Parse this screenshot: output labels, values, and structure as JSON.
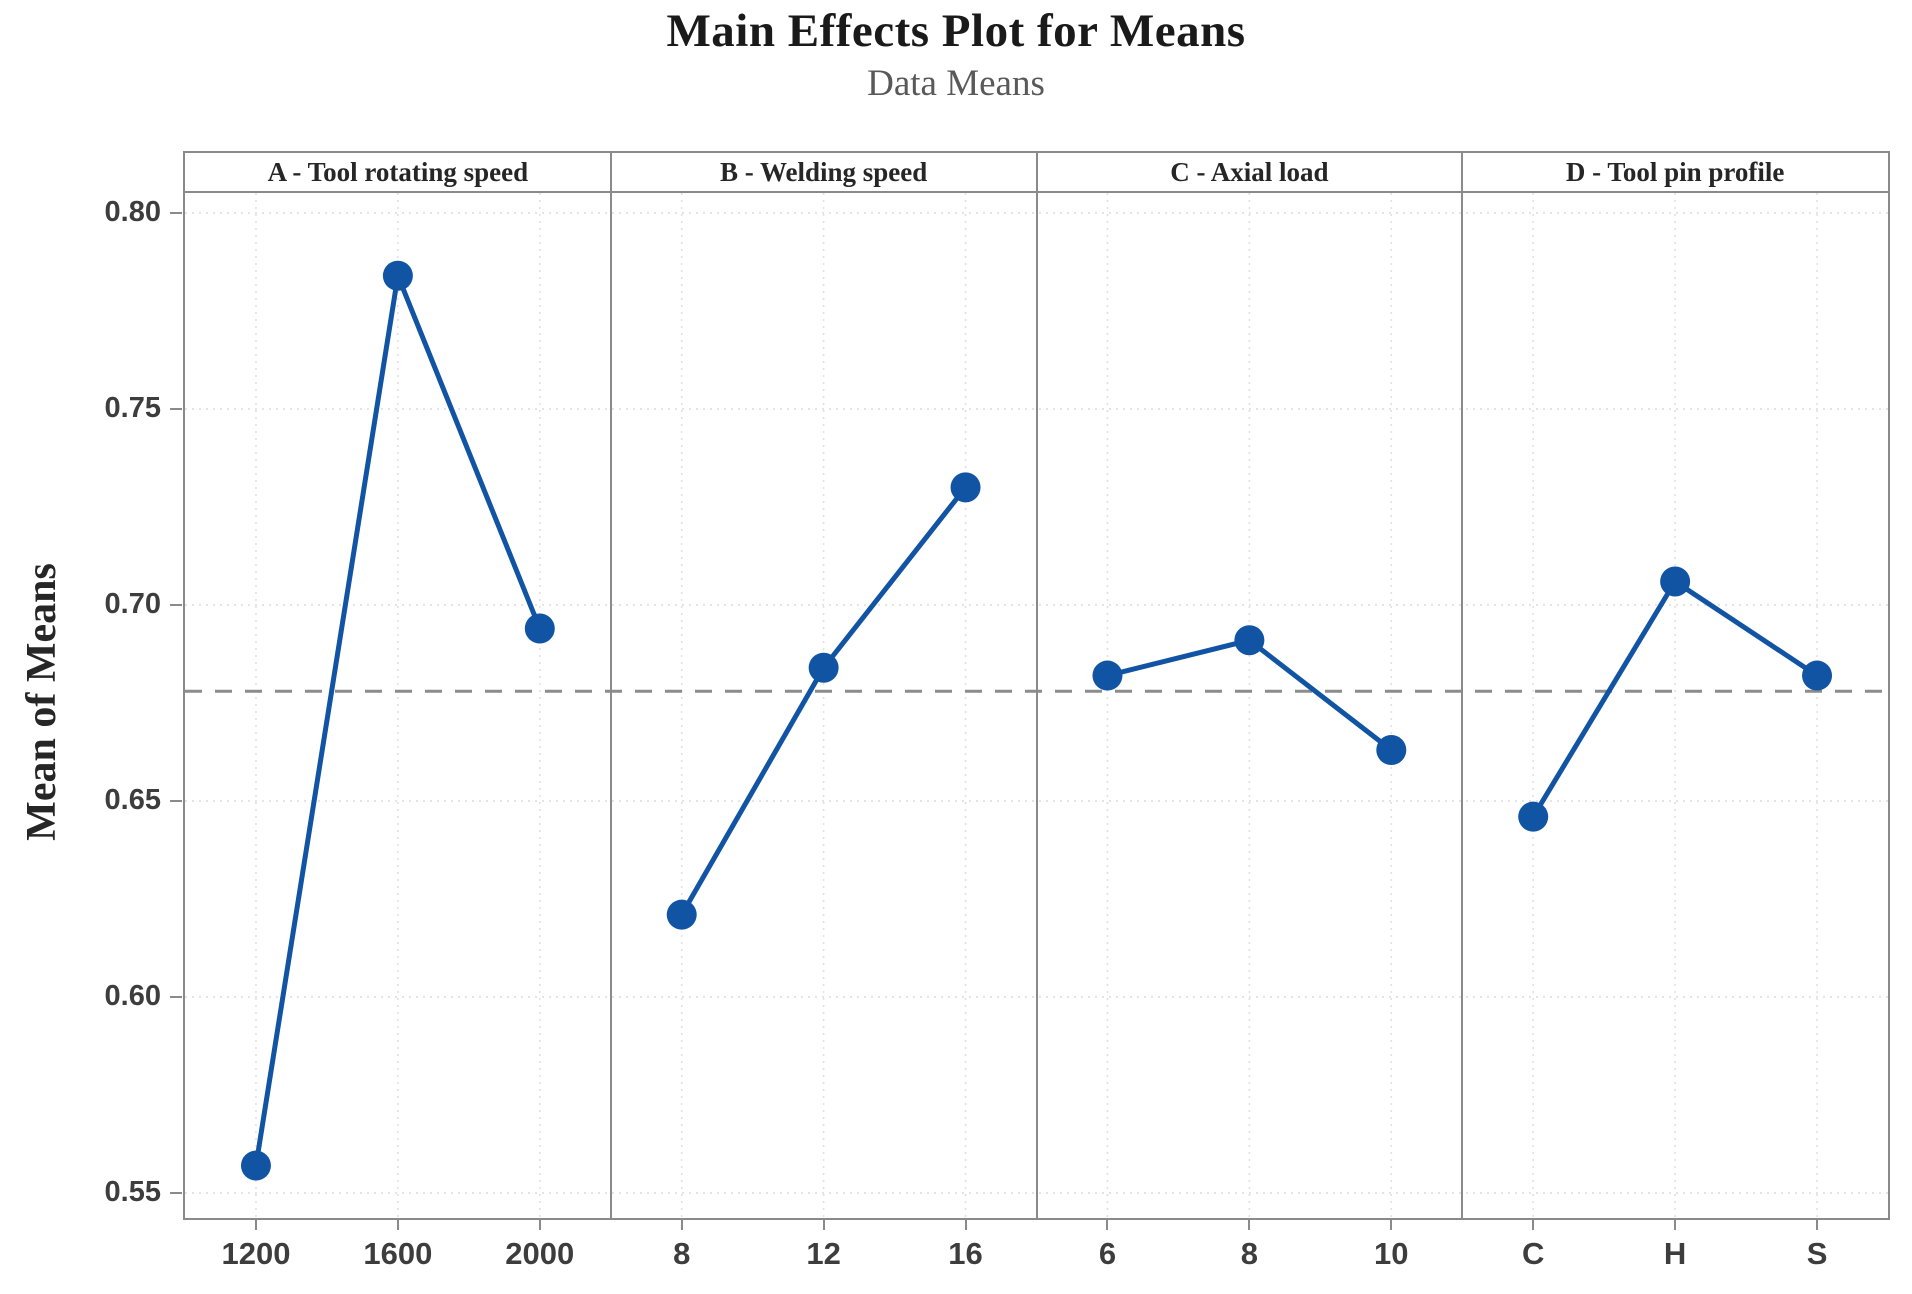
{
  "chart_data": {
    "type": "line",
    "title": "Main Effects Plot for Means",
    "subtitle": "Data Means",
    "ylabel": "Mean of Means",
    "ylim": [
      0.543,
      0.806
    ],
    "yticks": [
      0.8,
      0.75,
      0.7,
      0.65,
      0.6,
      0.55
    ],
    "ytick_labels": [
      "0.80",
      "0.75",
      "0.70",
      "0.65",
      "0.60",
      "0.55"
    ],
    "grid": "faint dotted at ticks and category positions",
    "grand_mean": 0.678,
    "legend_position": "none",
    "panels": [
      {
        "label": "A - Tool rotating speed",
        "categories": [
          "1200",
          "1600",
          "2000"
        ],
        "values": [
          0.557,
          0.784,
          0.694
        ]
      },
      {
        "label": "B - Welding speed",
        "categories": [
          "8",
          "12",
          "16"
        ],
        "values": [
          0.621,
          0.684,
          0.73
        ]
      },
      {
        "label": "C - Axial load",
        "categories": [
          "6",
          "8",
          "10"
        ],
        "values": [
          0.682,
          0.691,
          0.663
        ]
      },
      {
        "label": "D - Tool pin profile",
        "categories": [
          "C",
          "H",
          "S"
        ],
        "values": [
          0.646,
          0.706,
          0.682
        ]
      }
    ],
    "colors": {
      "series": "#1254a4",
      "axis": "#8a8a8a",
      "grand_mean_line": "#8c8c8c",
      "grid_h": "#dcdcdc",
      "grid_v": "#e6dfdf",
      "title_text": "#1a1a1a",
      "subtitle_text": "#595959",
      "tick_text": "#3d3d3d"
    }
  }
}
